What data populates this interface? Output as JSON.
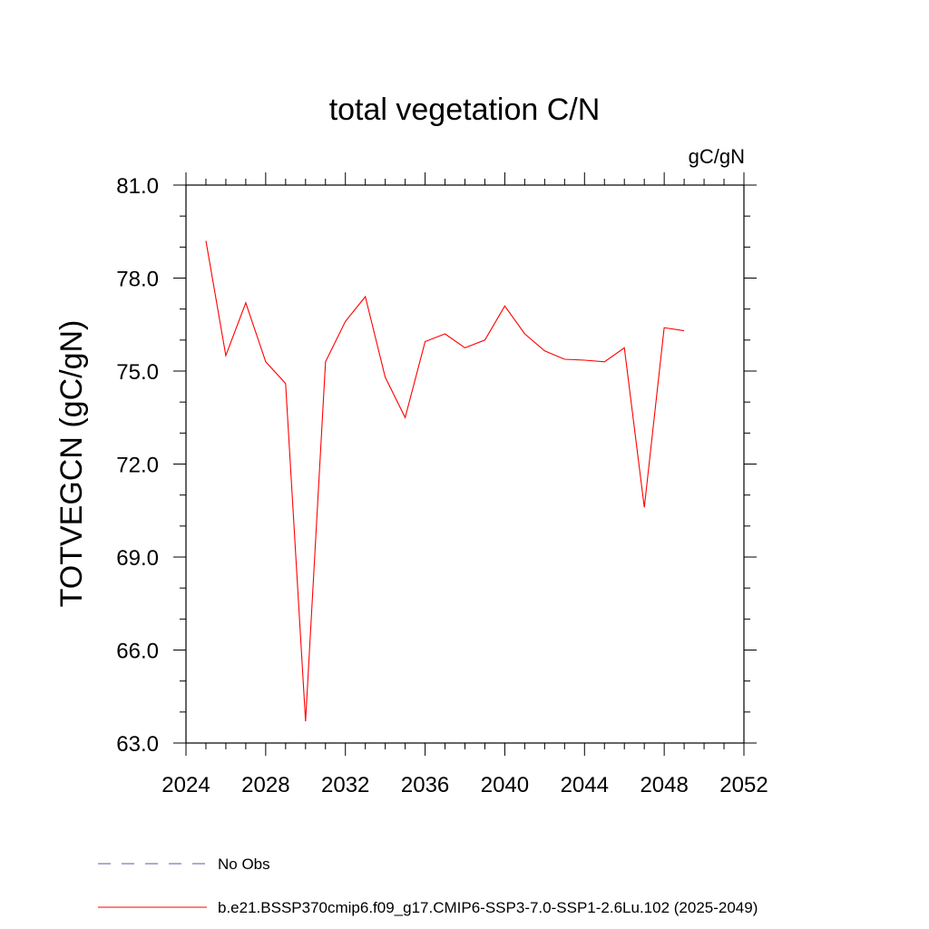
{
  "chart_data": {
    "type": "line",
    "title": "total vegetation C/N",
    "units": "gC/gN",
    "ylabel": "TOTVEGCN  (gC/gN)",
    "xlabel": "",
    "xlim": [
      2024,
      2052
    ],
    "ylim": [
      63.0,
      81.0
    ],
    "x_ticks": [
      "2024",
      "2028",
      "2032",
      "2036",
      "2040",
      "2044",
      "2048",
      "2052"
    ],
    "y_ticks": [
      "63.0",
      "66.0",
      "69.0",
      "72.0",
      "75.0",
      "78.0",
      "81.0"
    ],
    "series": [
      {
        "name": "b.e21.BSSP370cmip6.f09_g17.CMIP6-SSP3-7.0-SSP1-2.6Lu.102 (2025-2049)",
        "color": "#ff0000",
        "x": [
          2025,
          2026,
          2027,
          2028,
          2029,
          2030,
          2031,
          2032,
          2033,
          2034,
          2035,
          2036,
          2037,
          2038,
          2039,
          2040,
          2041,
          2042,
          2043,
          2044,
          2045,
          2046,
          2047,
          2048,
          2049
        ],
        "values": [
          79.2,
          75.5,
          77.2,
          75.3,
          74.6,
          63.7,
          75.3,
          76.6,
          77.4,
          74.8,
          73.5,
          75.95,
          76.2,
          75.75,
          76.0,
          77.1,
          76.2,
          75.65,
          75.38,
          75.35,
          75.3,
          75.75,
          70.6,
          76.4,
          76.3
        ]
      }
    ],
    "legend": [
      {
        "label": "No Obs",
        "style": "dashed",
        "color": "#5a5aa8"
      },
      {
        "label": "b.e21.BSSP370cmip6.f09_g17.CMIP6-SSP3-7.0-SSP1-2.6Lu.102 (2025-2049)",
        "style": "solid",
        "color": "#ff0000"
      }
    ]
  }
}
